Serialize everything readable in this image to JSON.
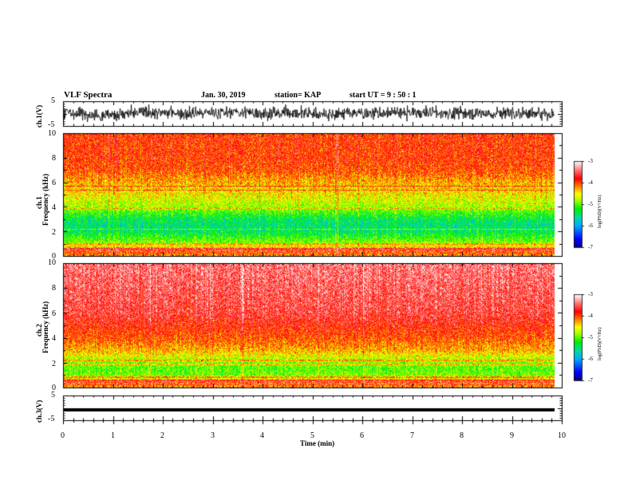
{
  "header": {
    "title": "VLF Spectra",
    "date": "Jan. 30, 2019",
    "station": "station= KAP",
    "start": "start  UT =   9 : 50 : 1"
  },
  "panels": {
    "ch1_wave": {
      "ylabel": "ch.1(V)",
      "yticks": [
        "5",
        "-5"
      ]
    },
    "ch1_spec": {
      "ylabel_top": "ch.1",
      "ylabel": "Frequency (kHz)",
      "yticks": [
        "10",
        "8",
        "6",
        "4",
        "2",
        "0"
      ]
    },
    "ch2_spec": {
      "ylabel_top": "ch.2",
      "ylabel": "Frequency (kHz)",
      "yticks": [
        "10",
        "8",
        "6",
        "4",
        "2",
        "0"
      ]
    },
    "ch3_wave": {
      "ylabel": "ch.3(V)",
      "yticks": [
        "5",
        "-5"
      ]
    }
  },
  "colorbar": {
    "label": "log(PSD)(V²/Hz)",
    "ticks": [
      "-3",
      "-4",
      "-5",
      "-6",
      "-7"
    ],
    "colors": [
      "#000080",
      "#0000ff",
      "#00c0ff",
      "#00e0a0",
      "#00ff00",
      "#c0ff00",
      "#ffff00",
      "#ff8000",
      "#ff0000",
      "#ff8080",
      "#ffffff"
    ]
  },
  "xaxis": {
    "label": "Time (min)",
    "ticks": [
      "0",
      "1",
      "2",
      "3",
      "4",
      "5",
      "6",
      "7",
      "8",
      "9",
      "10"
    ]
  },
  "chart_data": [
    {
      "type": "line",
      "name": "ch.1 waveform",
      "ylabel": "ch.1(V)",
      "xlim": [
        0,
        10
      ],
      "ylim": [
        -5,
        5
      ],
      "data_end_min": 9.85,
      "approx_mean_V": 0.2,
      "approx_noise_V": 2.0
    },
    {
      "type": "heatmap",
      "name": "ch.1 spectrogram",
      "xlabel": "Time (min)",
      "ylabel": "Frequency (kHz)",
      "xlim": [
        0,
        10
      ],
      "ylim": [
        0,
        10
      ],
      "colorbar_range": [
        -7,
        -3
      ],
      "data_end_min": 9.85,
      "profile_freq_kHz": [
        0.0,
        0.5,
        1.0,
        1.5,
        2.0,
        2.5,
        3.0,
        3.5,
        4.0,
        5.0,
        6.0,
        7.0,
        8.0,
        10.0
      ],
      "profile_logPSD": [
        -4.2,
        -4.0,
        -4.8,
        -5.1,
        -5.4,
        -5.5,
        -5.4,
        -5.1,
        -4.8,
        -4.5,
        -4.3,
        -4.0,
        -3.9,
        -3.9
      ],
      "horizontal_lines_kHz": [
        0.25,
        0.45,
        0.6,
        1.0,
        2.2,
        3.9,
        5.4,
        5.7
      ]
    },
    {
      "type": "heatmap",
      "name": "ch.2 spectrogram",
      "xlabel": "Time (min)",
      "ylabel": "Frequency (kHz)",
      "xlim": [
        0,
        10
      ],
      "ylim": [
        0,
        10
      ],
      "colorbar_range": [
        -7,
        -3
      ],
      "data_end_min": 9.85,
      "profile_freq_kHz": [
        0.0,
        0.5,
        1.0,
        1.5,
        2.0,
        2.5,
        3.0,
        4.0,
        5.0,
        6.0,
        8.0,
        10.0
      ],
      "profile_logPSD": [
        -4.2,
        -4.1,
        -4.9,
        -5.0,
        -4.9,
        -4.6,
        -4.3,
        -4.0,
        -3.8,
        -3.6,
        -3.5,
        -3.4
      ],
      "horizontal_lines_kHz": [
        0.25,
        0.45,
        0.6,
        0.85,
        1.9,
        2.2
      ]
    },
    {
      "type": "line",
      "name": "ch.3 waveform",
      "ylabel": "ch.3(V)",
      "xlim": [
        0,
        10
      ],
      "ylim": [
        -5,
        5
      ],
      "data_end_min": 9.85,
      "approx_mean_V": 0.0,
      "approx_noise_V": 0.3
    }
  ]
}
